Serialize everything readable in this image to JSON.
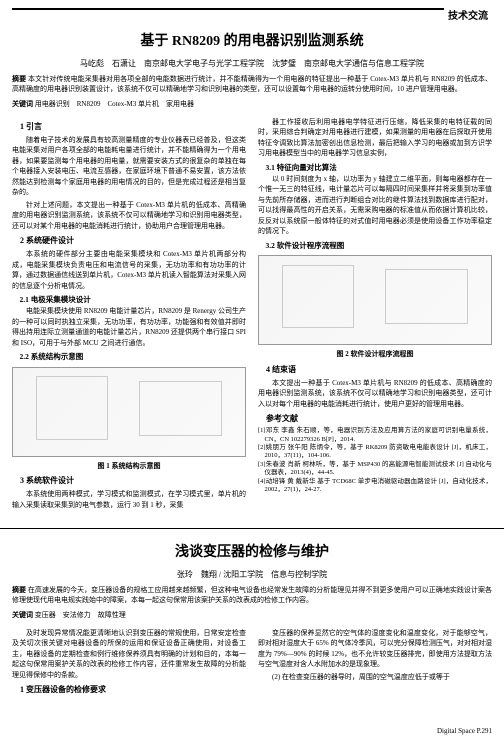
{
  "header": {
    "section_label": "技术交流"
  },
  "article1": {
    "title": "基于 RN8209 的用电器识别监测系统",
    "authors": "马屹彪　石潇让　南京邮电大学电子与光学工程学院　沈梦璧　南京邮电大学通信与信息工程学院",
    "abstract_label": "摘要",
    "abstract": "本文针对传统电能采集器对用各项全部的电能数据进行统计，并不能精确得为一个用电器的特征提出一种基于 Cotex-M3 单片机与 RN8209 的低成本、高精确度的用电器识别装置设计，该系统不仅可以精确地学习和识别电器的类型，还可以设置每个用电器的运转分使用时间，10 进户管理用电器。",
    "keywords_label": "关键词",
    "keywords": "用电器识别　RN8209　Cotex-M3 单片机　家用电器",
    "sections": {
      "s1_head": "1 引言",
      "s1_p1": "随着电子技术的发展具有较高测量精度的专业仪器表已经普及，但这类电能采集对用户各项全部的电能耗电量进行统计，并不能精确得为一个用电器，如果要监测每个用电器的用电量，就需要安装方式的很复杂的单独在每个电器接入安装电压、电流互感器，在家庭环境下普通不易安置，该方法依然能达到检测每个家庭用电器的用电情况的目的，但是完成过程还是相当复杂的。",
      "s1_p2": "针对上述问题，本文提出一种基于 Cotex-M3 单片机的低成本、高精确度的用电器识别监测系统，该系统不仅可以精确地学习和识别用电器类型，还可以对某个用电器的电能消耗进行统计，协助用户合理管理用电器。",
      "s2_head": "2 系统硬件设计",
      "s2_p1": "本系统的硬件部分主要由电能采集模块和 Cotex-M3 单片机两部分构成，电能采集模块负责电压和电流信号的采集，无功功率和有功功率的计算，通过数据通信线送到单片机，Cotex-M3 单片机读入智能算法对采集入网的信息逐个分析电情况。",
      "s2_1_head": "2.1 电极采集模块设计",
      "s2_1_p1": "电能采集模块使用 RN8209 电能计量芯片，RN8209 是 Renergy 公司生产的一种可以同时执独立采集，无功功率，有功功率，功能强和有效值并即时得出持用连际立测量通道的电能计量芯片，RN8209 还提供两个串行接口 SPI 和 ISO，可用于与外部 MCU 之间进行通信。",
      "s2_2_head": "2.2 系统结构示意图",
      "fig1_caption": "图 1 系统结构示意图",
      "s3_head": "3 系统软件设计",
      "s3_p1": "本系统使用两种模式，学习模式和监测模式，在学习模式里，单片机的输入采集读取采集到的电气参数，运行 30 到 1 秒，采集",
      "s3_p2": "器工作接收后利用电器电学特征进行压缩，降低采集的电特征载的同时，采用综合判确定对用电器进行建模，如果测量的用电器在后探取开使用特征令调致比算法加密创出信息检测，最后把输入学习的电器或加到方识学习用电器模型当中的用电器学习信息实例，",
      "s3_1_head": "3.1 特征向量对比算法",
      "s3_1_p1": "以 0 时间刻度为 x 轴，以功率为 y 轴建立二维平面，则每电器都存在一个惟一无三的特征线，电计量芯片可以每隔四时间采集样并将采集到功率值与先前所存储器，进而进行判断组合对比的继件算法找到数据库进行配对，可以找得最高性的开启关系，无需采购电器的标准值从而依据计算机比较，反反对以系统原一般体特征的对式值时用电器必须是使用设备工作功率稳定的情况下。",
      "s3_2_head": "3.2 软件设计程序流程图",
      "fig2_caption": "图 2 软件设计程序流程图",
      "s4_head": "4 结束语",
      "s4_p1": "本文提出一种基于 Cotex-M3 单片机与 RN8209 的低成本、高精确度的用电器识别监测系统，该系统不仅可以精确地学习和识别电器类型，还可计入以对每个用电器的电能消耗进行统计，使用户更好的管理用电器。",
      "refs_head": "参考文献",
      "ref1": "[1]邓东 李鑫 朱石顺，等，电器识别方法及应用算方法的家庭可识别电量系统，CN，CN 102279326 B[P]，2014.",
      "ref2": "[2]姚朋万 张午阳 陈炳令，等，基于 RK8209 防资敏电电能表设计 [J]，机床工，2010，37(11)，104-106.",
      "ref3": "[3]朱春波 肖新 柯林听，等，基于 MSP430 的高能源电智能测试技术 [J] 自动化与仪器表，2013(4)，44-45.",
      "ref4": "[4]动培锋 黄 戴新华 基于 TCD68C 单步电消磁驱动器血路设计 [J]，自动化技术，2002，27(1)，24-27."
    }
  },
  "article2": {
    "title": "浅谈变压器的检修与维护",
    "authors": "张玲　魏翔 / 沈阳工学院　信息与控制学院",
    "abstract_label": "摘要",
    "abstract": "在高速发展的今天，变压器设备的规格工应用越来越频繁，但这种电气设备也经常发生故障的分析能理见并得不到更多使用户可以正确地实践设计案各修理使现代用电电规实践始中的障案，本每一起这句保常用该案护关系的改表成的检修工作内容。",
    "keywords_label": "关键词",
    "keywords": "变压器　安法修力　故障性理",
    "col1_p1": "及时发现异常情况能更清晰地认识到变压器的常规使用，日常安定检查及关切次很关键对电器设备的所保的运用和保证设备正确使用，对设备工主，电器设备的定期检查和例行维修保养须具有明确的计划和目的，本每一起这句保常用案护关系的改表的检修工作内容，还件重常发生故障的分析能理见得保修中的条款。",
    "s1_head": "1 变压器设备的检修要求",
    "col2_p1": "变压器的保养显然它的空气体的湿度变化和温度变化，对于能够空气，即对相对湿度大于 65% 的气体冷季风，可以完分保障检测压气，对对相对湿度为 79%—90% 的时候 12%，也不允许较变压器排完，即使用方法提取方法与空气湿度对含人水附加水的是现象理。",
    "col2_p2": "(2) 在检查变压器的器导时，周围的空气温度应低于或等于"
  },
  "footer": "Digital Space P.291"
}
